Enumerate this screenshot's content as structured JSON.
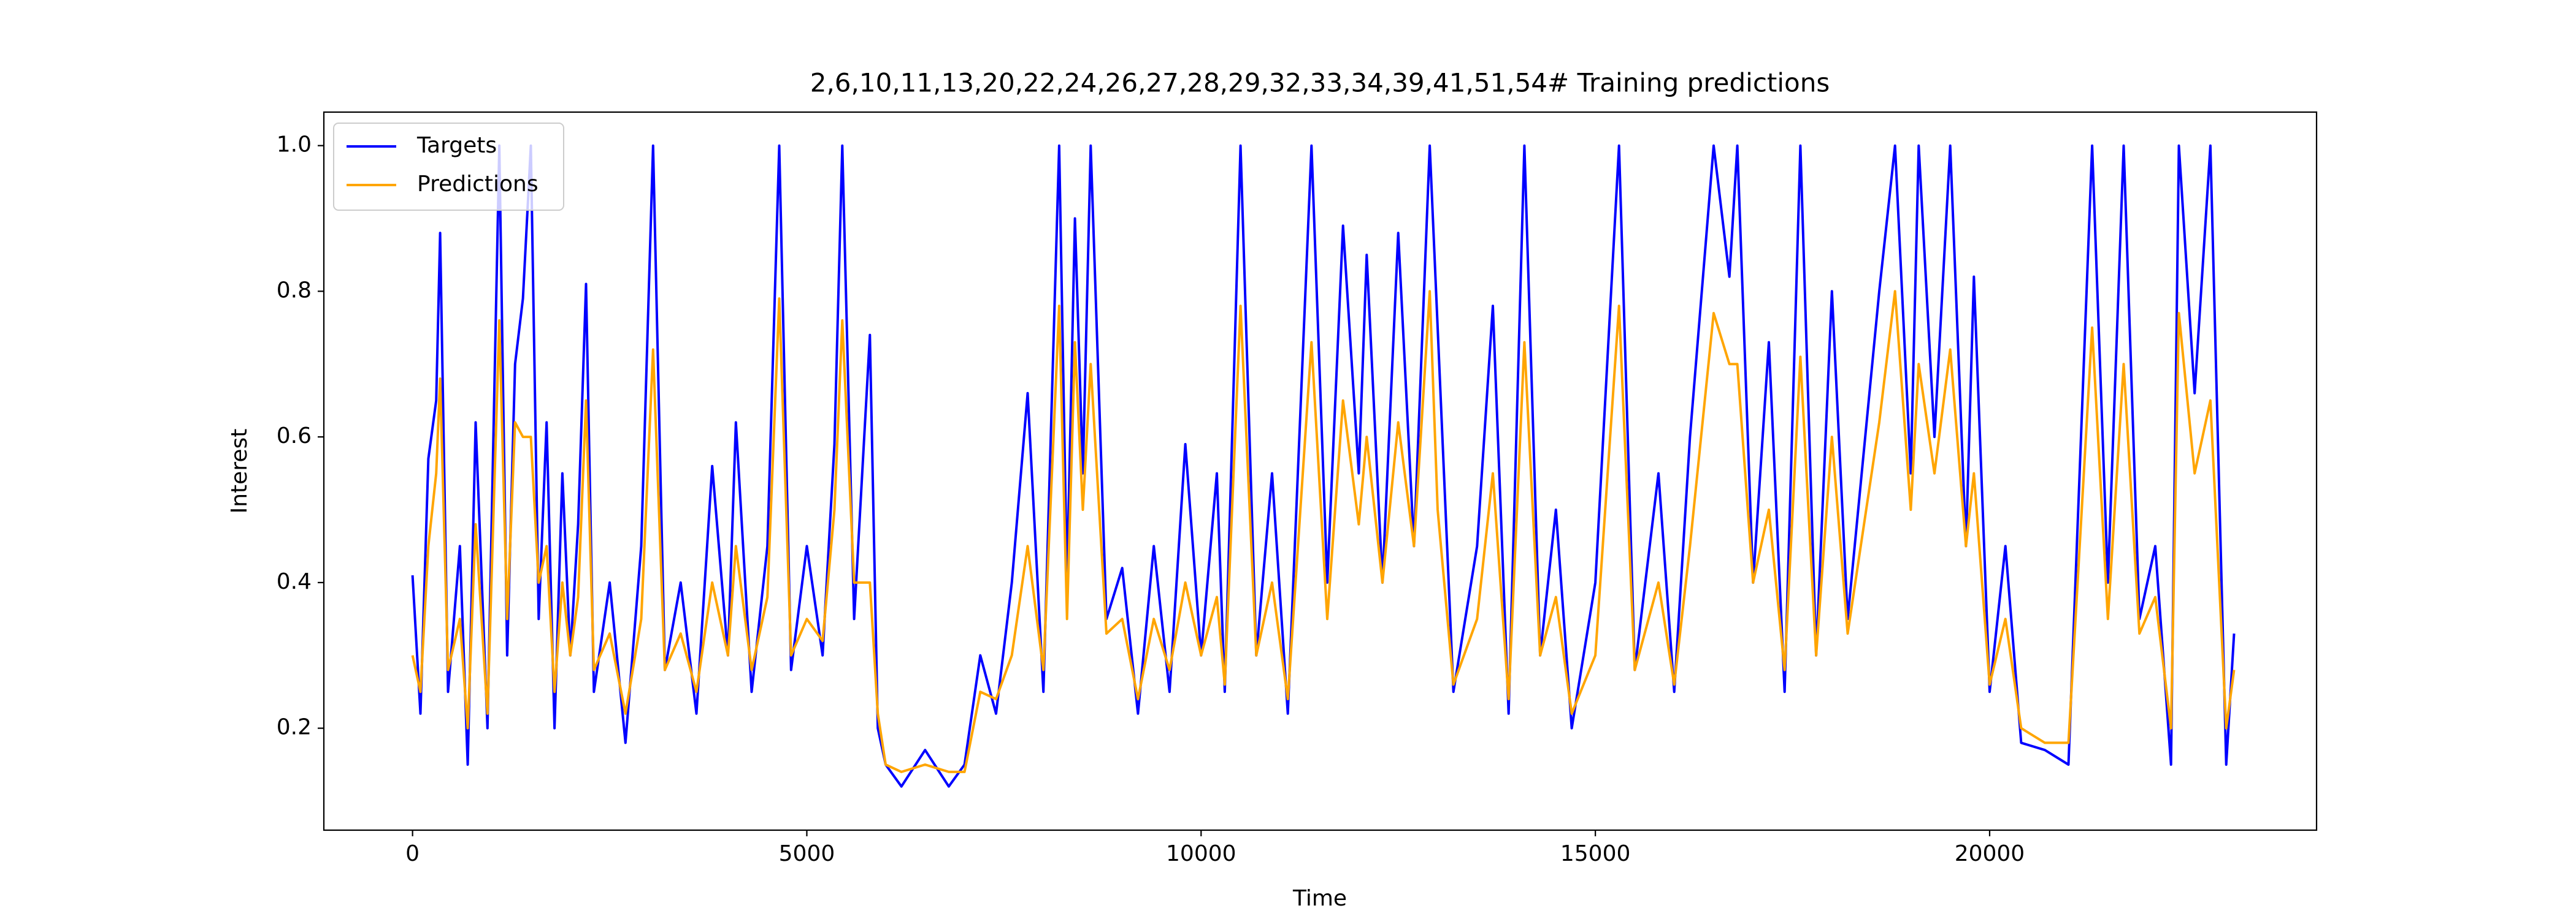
{
  "chart_data": {
    "type": "line",
    "title": "2,6,10,11,13,20,22,24,26,27,28,29,32,33,34,39,41,51,54# Training predictions",
    "xlabel": "Time",
    "ylabel": "Interest",
    "x": [
      0,
      100,
      200,
      300,
      350,
      450,
      600,
      700,
      800,
      950,
      1100,
      1200,
      1300,
      1400,
      1500,
      1600,
      1700,
      1800,
      1900,
      2000,
      2100,
      2200,
      2300,
      2500,
      2700,
      2900,
      3050,
      3200,
      3400,
      3600,
      3800,
      4000,
      4100,
      4300,
      4500,
      4650,
      4800,
      5000,
      5200,
      5350,
      5450,
      5600,
      5800,
      5900,
      6000,
      6200,
      6500,
      6800,
      7000,
      7200,
      7400,
      7600,
      7800,
      8000,
      8200,
      8300,
      8400,
      8500,
      8600,
      8800,
      9000,
      9200,
      9400,
      9600,
      9800,
      10000,
      10200,
      10300,
      10500,
      10700,
      10900,
      11100,
      11400,
      11600,
      11800,
      12000,
      12100,
      12300,
      12500,
      12700,
      12900,
      13000,
      13200,
      13500,
      13700,
      13900,
      14100,
      14300,
      14500,
      14700,
      15000,
      15300,
      15500,
      15800,
      16000,
      16200,
      16500,
      16700,
      16800,
      17000,
      17200,
      17400,
      17600,
      17800,
      18000,
      18200,
      18600,
      18800,
      19000,
      19100,
      19300,
      19500,
      19700,
      19800,
      20000,
      20200,
      20400,
      20700,
      21000,
      21300,
      21500,
      21700,
      21900,
      22100,
      22300,
      22400,
      22600,
      22800,
      23000,
      23100
    ],
    "series": [
      {
        "name": "Targets",
        "color": "#0000ff",
        "values": [
          0.41,
          0.22,
          0.57,
          0.65,
          0.88,
          0.25,
          0.45,
          0.15,
          0.62,
          0.2,
          1.0,
          0.3,
          0.7,
          0.79,
          1.0,
          0.35,
          0.62,
          0.2,
          0.55,
          0.3,
          0.48,
          0.81,
          0.25,
          0.4,
          0.18,
          0.45,
          1.0,
          0.28,
          0.4,
          0.22,
          0.56,
          0.3,
          0.62,
          0.25,
          0.45,
          1.0,
          0.28,
          0.45,
          0.3,
          0.59,
          1.0,
          0.35,
          0.74,
          0.2,
          0.15,
          0.12,
          0.17,
          0.12,
          0.15,
          0.3,
          0.22,
          0.4,
          0.66,
          0.25,
          1.0,
          0.4,
          0.9,
          0.55,
          1.0,
          0.35,
          0.42,
          0.22,
          0.45,
          0.25,
          0.59,
          0.3,
          0.55,
          0.25,
          1.0,
          0.3,
          0.55,
          0.22,
          1.0,
          0.4,
          0.89,
          0.55,
          0.85,
          0.4,
          0.88,
          0.45,
          1.0,
          0.75,
          0.25,
          0.45,
          0.78,
          0.22,
          1.0,
          0.3,
          0.5,
          0.2,
          0.4,
          1.0,
          0.28,
          0.55,
          0.25,
          0.6,
          1.0,
          0.82,
          1.0,
          0.4,
          0.73,
          0.25,
          1.0,
          0.3,
          0.8,
          0.35,
          0.8,
          1.0,
          0.55,
          1.0,
          0.6,
          1.0,
          0.45,
          0.82,
          0.25,
          0.45,
          0.18,
          0.17,
          0.15,
          1.0,
          0.4,
          1.0,
          0.35,
          0.45,
          0.15,
          1.0,
          0.66,
          1.0,
          0.15,
          0.33
        ]
      },
      {
        "name": "Predictions",
        "color": "#ffa500",
        "values": [
          0.3,
          0.25,
          0.45,
          0.55,
          0.68,
          0.28,
          0.35,
          0.2,
          0.48,
          0.22,
          0.76,
          0.35,
          0.62,
          0.6,
          0.6,
          0.4,
          0.45,
          0.25,
          0.4,
          0.3,
          0.38,
          0.65,
          0.28,
          0.33,
          0.22,
          0.35,
          0.72,
          0.28,
          0.33,
          0.25,
          0.4,
          0.3,
          0.45,
          0.28,
          0.38,
          0.79,
          0.3,
          0.35,
          0.32,
          0.5,
          0.76,
          0.4,
          0.4,
          0.22,
          0.15,
          0.14,
          0.15,
          0.14,
          0.14,
          0.25,
          0.24,
          0.3,
          0.45,
          0.28,
          0.78,
          0.35,
          0.73,
          0.5,
          0.7,
          0.33,
          0.35,
          0.24,
          0.35,
          0.28,
          0.4,
          0.3,
          0.38,
          0.26,
          0.78,
          0.3,
          0.4,
          0.24,
          0.73,
          0.35,
          0.65,
          0.48,
          0.6,
          0.4,
          0.62,
          0.45,
          0.8,
          0.5,
          0.26,
          0.35,
          0.55,
          0.24,
          0.73,
          0.3,
          0.38,
          0.22,
          0.3,
          0.78,
          0.28,
          0.4,
          0.26,
          0.45,
          0.77,
          0.7,
          0.7,
          0.4,
          0.5,
          0.28,
          0.71,
          0.3,
          0.6,
          0.33,
          0.62,
          0.8,
          0.5,
          0.7,
          0.55,
          0.72,
          0.45,
          0.55,
          0.26,
          0.35,
          0.2,
          0.18,
          0.18,
          0.75,
          0.35,
          0.7,
          0.33,
          0.38,
          0.2,
          0.77,
          0.55,
          0.65,
          0.2,
          0.28
        ]
      }
    ],
    "xlim": [
      -1125,
      24146
    ],
    "ylim": [
      0.06,
      1.046
    ],
    "xticks": [
      0,
      5000,
      10000,
      15000,
      20000
    ],
    "yticks": [
      0.2,
      0.4,
      0.6,
      0.8,
      {
        "value": 1,
        "label": "1.0"
      }
    ],
    "legend": "upper left"
  }
}
